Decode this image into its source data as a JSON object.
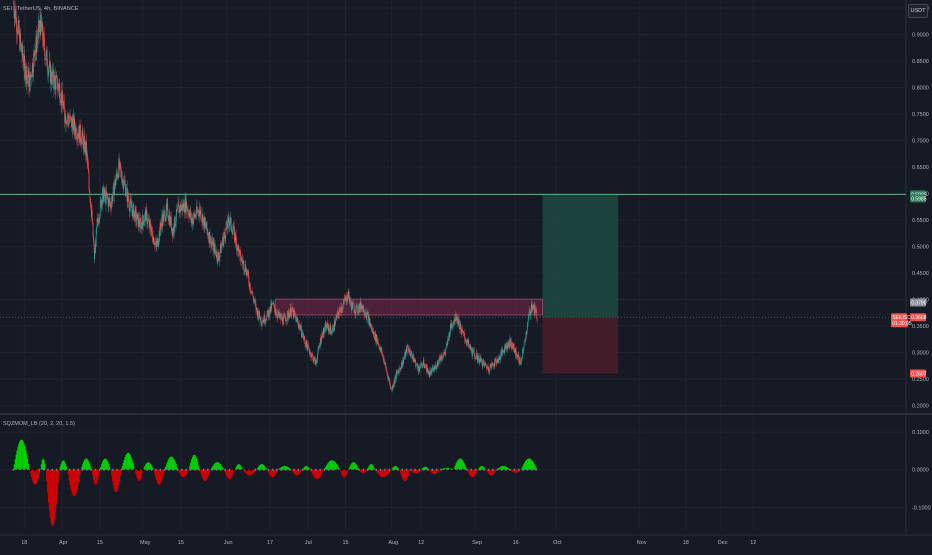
{
  "header": {
    "symbol_title": "SEI / TetherUS, 4h, BINANCE",
    "currency": "USDT"
  },
  "indicator": {
    "title": "SQZMOM_LB (20, 2, 20, 1.5)"
  },
  "colors": {
    "background": "#161a25",
    "grid": "#1f232e",
    "candle_up": "#26a69a",
    "candle_down": "#ef5350",
    "zone_fill": "#7b2a4a",
    "target_line": "#5fae8a",
    "profit_fill": "#1d4a43",
    "loss_fill": "#4a1e2a",
    "hist_up": "#00e600",
    "hist_down": "#e60000",
    "dot_gray": "#787b86"
  },
  "chart_data": [
    {
      "type": "candlestick",
      "symbol": "SEI / TetherUS",
      "timeframe": "4h",
      "exchange": "BINANCE",
      "y_axis": {
        "unit": "USDT",
        "ticks": [
          0.95,
          0.9,
          0.85,
          0.8,
          0.75,
          0.7,
          0.65,
          0.6,
          0.55,
          0.5,
          0.45,
          0.4,
          0.35,
          0.3,
          0.25,
          0.2
        ],
        "tick_labels": [
          "0.9500",
          "0.9000",
          "0.8500",
          "0.8000",
          "0.7500",
          "0.7000",
          "0.6500",
          "0.6000",
          "0.5500",
          "0.5000",
          "0.4500",
          "0.4000",
          "0.3500",
          "0.3000",
          "0.2500",
          "0.2000"
        ],
        "range": [
          0.19,
          0.965
        ]
      },
      "x_axis": {
        "ticks": [
          "18",
          "Apr",
          "15",
          "May",
          "15",
          "Jun",
          "17",
          "Jul",
          "15",
          "Aug",
          "12",
          "Sep",
          "16",
          "Oct",
          "Nov",
          "18",
          "Dec",
          "12"
        ],
        "tick_days": [
          -14,
          0,
          14,
          30,
          44,
          61,
          77,
          91,
          105,
          122,
          133,
          153,
          168,
          183,
          214,
          231,
          244,
          256
        ]
      },
      "price_path": [
        [
          -18,
          0.96
        ],
        [
          -16,
          0.9
        ],
        [
          -14,
          0.84
        ],
        [
          -12,
          0.81
        ],
        [
          -10,
          0.87
        ],
        [
          -8,
          0.92
        ],
        [
          -6,
          0.86
        ],
        [
          -4,
          0.82
        ],
        [
          -1,
          0.8
        ],
        [
          1,
          0.75
        ],
        [
          4,
          0.73
        ],
        [
          7,
          0.71
        ],
        [
          9,
          0.68
        ],
        [
          10,
          0.62
        ],
        [
          11,
          0.56
        ],
        [
          12,
          0.48
        ],
        [
          13,
          0.54
        ],
        [
          15,
          0.6
        ],
        [
          18,
          0.58
        ],
        [
          21,
          0.65
        ],
        [
          23,
          0.62
        ],
        [
          25,
          0.58
        ],
        [
          27,
          0.56
        ],
        [
          29,
          0.54
        ],
        [
          31,
          0.56
        ],
        [
          33,
          0.53
        ],
        [
          35,
          0.5
        ],
        [
          37,
          0.55
        ],
        [
          39,
          0.57
        ],
        [
          41,
          0.53
        ],
        [
          43,
          0.57
        ],
        [
          46,
          0.58
        ],
        [
          48,
          0.55
        ],
        [
          51,
          0.57
        ],
        [
          53,
          0.54
        ],
        [
          56,
          0.5
        ],
        [
          58,
          0.48
        ],
        [
          60,
          0.52
        ],
        [
          62,
          0.55
        ],
        [
          64,
          0.52
        ],
        [
          66,
          0.48
        ],
        [
          68,
          0.46
        ],
        [
          70,
          0.42
        ],
        [
          72,
          0.38
        ],
        [
          74,
          0.36
        ],
        [
          76,
          0.37
        ],
        [
          78,
          0.39
        ],
        [
          80,
          0.37
        ],
        [
          82,
          0.36
        ],
        [
          85,
          0.38
        ],
        [
          88,
          0.35
        ],
        [
          90,
          0.32
        ],
        [
          92,
          0.3
        ],
        [
          94,
          0.28
        ],
        [
          96,
          0.33
        ],
        [
          98,
          0.35
        ],
        [
          100,
          0.34
        ],
        [
          102,
          0.37
        ],
        [
          104,
          0.39
        ],
        [
          106,
          0.41
        ],
        [
          107,
          0.39
        ],
        [
          109,
          0.38
        ],
        [
          111,
          0.39
        ],
        [
          113,
          0.37
        ],
        [
          115,
          0.34
        ],
        [
          117,
          0.32
        ],
        [
          119,
          0.29
        ],
        [
          121,
          0.25
        ],
        [
          122,
          0.23
        ],
        [
          124,
          0.26
        ],
        [
          126,
          0.28
        ],
        [
          128,
          0.31
        ],
        [
          130,
          0.29
        ],
        [
          132,
          0.27
        ],
        [
          134,
          0.28
        ],
        [
          136,
          0.26
        ],
        [
          138,
          0.27
        ],
        [
          140,
          0.29
        ],
        [
          142,
          0.3
        ],
        [
          144,
          0.35
        ],
        [
          146,
          0.37
        ],
        [
          148,
          0.34
        ],
        [
          150,
          0.32
        ],
        [
          152,
          0.3
        ],
        [
          154,
          0.29
        ],
        [
          156,
          0.28
        ],
        [
          158,
          0.27
        ],
        [
          160,
          0.28
        ],
        [
          162,
          0.29
        ],
        [
          164,
          0.31
        ],
        [
          166,
          0.32
        ],
        [
          168,
          0.3
        ],
        [
          170,
          0.28
        ],
        [
          171,
          0.31
        ],
        [
          172,
          0.34
        ],
        [
          173,
          0.37
        ],
        [
          174,
          0.39
        ],
        [
          175,
          0.38
        ],
        [
          176,
          0.37
        ]
      ],
      "overlays": {
        "resistance_zone": {
          "from_day": 79,
          "to_day": 178,
          "low": 0.371,
          "high": 0.401
        },
        "target_line": {
          "price": 0.5985
        },
        "position": {
          "from_day": 178,
          "to_day": 206,
          "entry": 0.3668,
          "target": 0.5985,
          "stop": 0.2607
        },
        "last_price": {
          "price": 0.3668
        }
      },
      "price_labels": [
        {
          "text": "0.5985",
          "price": 0.5985,
          "color": "#2e7d5b"
        },
        {
          "text": "0.5985",
          "price": 0.591,
          "color": "#2e7d5b"
        },
        {
          "text": "0.3790",
          "price": 0.3946,
          "color": "#8a8d99"
        },
        {
          "text": "SEIUSDT",
          "price": 0.3668,
          "color": "#ef5350"
        },
        {
          "text": "0.3668",
          "price": 0.3668,
          "color": "#ef5350"
        },
        {
          "text": "01:30:05",
          "price": 0.3555,
          "color": "#ef5350"
        },
        {
          "text": "0.2607",
          "price": 0.2607,
          "color": "#ef5350"
        }
      ]
    },
    {
      "type": "histogram",
      "name": "SQZMOM_LB (20, 2, 20, 1.5)",
      "y_axis": {
        "ticks": [
          0.1,
          0.0,
          -0.1
        ],
        "tick_labels": [
          "0.1000",
          "0.0000",
          "-0.1000"
        ],
        "range": [
          -0.16,
          0.14
        ]
      },
      "waves": [
        {
          "from": -18,
          "to": -12,
          "amp": 0.08
        },
        {
          "from": -12,
          "to": -8,
          "amp": -0.04
        },
        {
          "from": -8,
          "to": -6,
          "amp": 0.03
        },
        {
          "from": -6,
          "to": -1,
          "amp": -0.15
        },
        {
          "from": -1,
          "to": 2,
          "amp": 0.025
        },
        {
          "from": 2,
          "to": 7,
          "amp": -0.07
        },
        {
          "from": 7,
          "to": 11,
          "amp": 0.03
        },
        {
          "from": 11,
          "to": 14,
          "amp": -0.04
        },
        {
          "from": 14,
          "to": 18,
          "amp": 0.03
        },
        {
          "from": 18,
          "to": 22,
          "amp": -0.06
        },
        {
          "from": 22,
          "to": 27,
          "amp": 0.045
        },
        {
          "from": 27,
          "to": 30,
          "amp": -0.03
        },
        {
          "from": 30,
          "to": 34,
          "amp": 0.02
        },
        {
          "from": 34,
          "to": 38,
          "amp": -0.04
        },
        {
          "from": 38,
          "to": 43,
          "amp": 0.035
        },
        {
          "from": 43,
          "to": 47,
          "amp": -0.02
        },
        {
          "from": 47,
          "to": 51,
          "amp": 0.04
        },
        {
          "from": 51,
          "to": 55,
          "amp": -0.03
        },
        {
          "from": 55,
          "to": 60,
          "amp": 0.02
        },
        {
          "from": 60,
          "to": 64,
          "amp": -0.025
        },
        {
          "from": 64,
          "to": 67,
          "amp": 0.015
        },
        {
          "from": 67,
          "to": 72,
          "amp": -0.015
        },
        {
          "from": 72,
          "to": 76,
          "amp": 0.015
        },
        {
          "from": 76,
          "to": 80,
          "amp": -0.02
        },
        {
          "from": 80,
          "to": 85,
          "amp": 0.01
        },
        {
          "from": 85,
          "to": 89,
          "amp": -0.015
        },
        {
          "from": 89,
          "to": 92,
          "amp": 0.01
        },
        {
          "from": 92,
          "to": 97,
          "amp": -0.025
        },
        {
          "from": 97,
          "to": 103,
          "amp": 0.025
        },
        {
          "from": 103,
          "to": 106,
          "amp": -0.02
        },
        {
          "from": 106,
          "to": 110,
          "amp": 0.02
        },
        {
          "from": 110,
          "to": 113,
          "amp": -0.01
        },
        {
          "from": 113,
          "to": 116,
          "amp": 0.015
        },
        {
          "from": 116,
          "to": 122,
          "amp": -0.02
        },
        {
          "from": 122,
          "to": 125,
          "amp": 0.01
        },
        {
          "from": 125,
          "to": 129,
          "amp": -0.03
        },
        {
          "from": 129,
          "to": 133,
          "amp": -0.01
        },
        {
          "from": 133,
          "to": 136,
          "amp": 0.008
        },
        {
          "from": 136,
          "to": 140,
          "amp": -0.012
        },
        {
          "from": 140,
          "to": 145,
          "amp": 0.005
        },
        {
          "from": 145,
          "to": 150,
          "amp": 0.03
        },
        {
          "from": 150,
          "to": 154,
          "amp": -0.02
        },
        {
          "from": 154,
          "to": 157,
          "amp": 0.01
        },
        {
          "from": 157,
          "to": 161,
          "amp": -0.015
        },
        {
          "from": 161,
          "to": 166,
          "amp": 0.01
        },
        {
          "from": 166,
          "to": 170,
          "amp": -0.008
        },
        {
          "from": 170,
          "to": 176,
          "amp": 0.03
        }
      ]
    }
  ]
}
